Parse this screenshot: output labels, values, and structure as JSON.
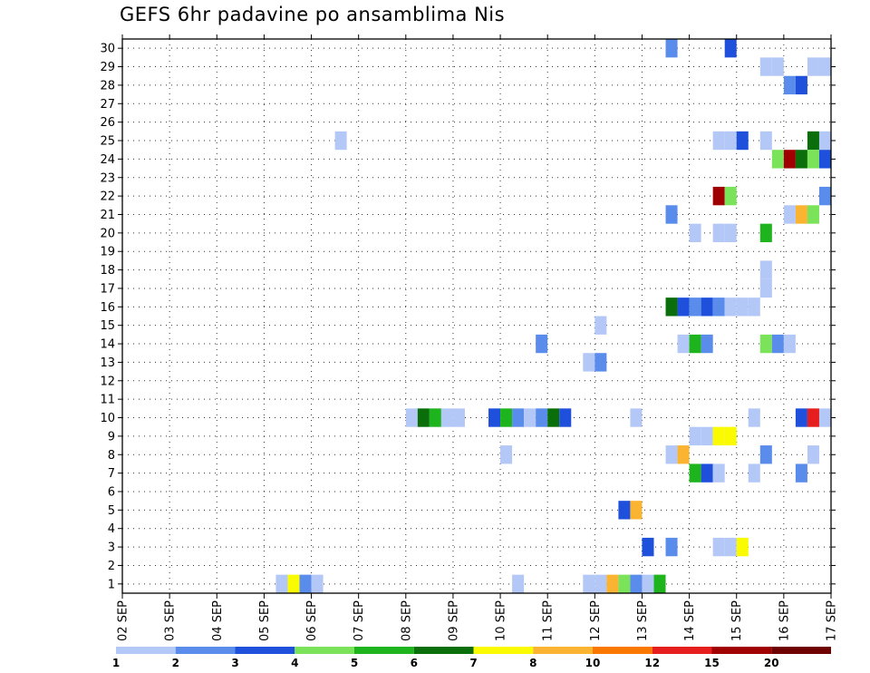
{
  "chart_data": {
    "type": "heatmap",
    "title": "GEFS 6hr padavine po ansamblima Nis",
    "xlabel": "",
    "ylabel": "",
    "x_tick_labels": [
      "02 SEP",
      "03 SEP",
      "04 SEP",
      "05 SEP",
      "06 SEP",
      "07 SEP",
      "08 SEP",
      "09 SEP",
      "10 SEP",
      "11 SEP",
      "12 SEP",
      "13 SEP",
      "14 SEP",
      "15 SEP",
      "16 SEP",
      "17 SEP"
    ],
    "x_range_days": [
      0,
      15
    ],
    "y_tick_labels": [
      "1",
      "2",
      "3",
      "4",
      "5",
      "6",
      "7",
      "8",
      "9",
      "10",
      "11",
      "12",
      "13",
      "14",
      "15",
      "16",
      "17",
      "18",
      "19",
      "20",
      "21",
      "22",
      "23",
      "24",
      "25",
      "26",
      "27",
      "28",
      "29",
      "30"
    ],
    "y_range": [
      0.5,
      30.5
    ],
    "grid": true,
    "legend_position": "bottom",
    "legend": {
      "labels": [
        "1",
        "2",
        "3",
        "4",
        "5",
        "6",
        "7",
        "8",
        "10",
        "12",
        "15",
        "20"
      ],
      "colors": [
        "#b4c8f8",
        "#5a8ceb",
        "#1e50dc",
        "#7be35a",
        "#1eb41e",
        "#0a6e0a",
        "#fafa00",
        "#fab432",
        "#fa7800",
        "#e61e1e",
        "#a00000",
        "#6e0000"
      ]
    },
    "cells": [
      {
        "m": 30,
        "t": 11.5,
        "c": 1
      },
      {
        "m": 30,
        "t": 12.75,
        "c": 2
      },
      {
        "m": 29,
        "t": 13.5,
        "c": 0
      },
      {
        "m": 29,
        "t": 13.75,
        "c": 0
      },
      {
        "m": 29,
        "t": 14.5,
        "c": 0
      },
      {
        "m": 29,
        "t": 14.75,
        "c": 0
      },
      {
        "m": 28,
        "t": 14.0,
        "c": 1
      },
      {
        "m": 28,
        "t": 14.25,
        "c": 2
      },
      {
        "m": 25,
        "t": 4.5,
        "c": 0
      },
      {
        "m": 25,
        "t": 12.5,
        "c": 0
      },
      {
        "m": 25,
        "t": 12.75,
        "c": 0
      },
      {
        "m": 25,
        "t": 13.0,
        "c": 2
      },
      {
        "m": 25,
        "t": 13.5,
        "c": 0
      },
      {
        "m": 25,
        "t": 14.5,
        "c": 5
      },
      {
        "m": 25,
        "t": 14.75,
        "c": 0
      },
      {
        "m": 24,
        "t": 13.75,
        "c": 3
      },
      {
        "m": 24,
        "t": 14.0,
        "c": 10
      },
      {
        "m": 24,
        "t": 14.25,
        "c": 5
      },
      {
        "m": 24,
        "t": 14.5,
        "c": 3
      },
      {
        "m": 24,
        "t": 14.75,
        "c": 2
      },
      {
        "m": 22,
        "t": 12.5,
        "c": 10
      },
      {
        "m": 22,
        "t": 12.75,
        "c": 3
      },
      {
        "m": 22,
        "t": 14.75,
        "c": 1
      },
      {
        "m": 21,
        "t": 11.5,
        "c": 1
      },
      {
        "m": 21,
        "t": 14.0,
        "c": 0
      },
      {
        "m": 21,
        "t": 14.25,
        "c": 7
      },
      {
        "m": 21,
        "t": 14.5,
        "c": 3
      },
      {
        "m": 20,
        "t": 12.0,
        "c": 0
      },
      {
        "m": 20,
        "t": 12.5,
        "c": 0
      },
      {
        "m": 20,
        "t": 12.75,
        "c": 0
      },
      {
        "m": 20,
        "t": 13.5,
        "c": 4
      },
      {
        "m": 18,
        "t": 13.5,
        "c": 0
      },
      {
        "m": 17,
        "t": 13.5,
        "c": 0
      },
      {
        "m": 16,
        "t": 11.5,
        "c": 5
      },
      {
        "m": 16,
        "t": 11.75,
        "c": 2
      },
      {
        "m": 16,
        "t": 12.0,
        "c": 1
      },
      {
        "m": 16,
        "t": 12.25,
        "c": 2
      },
      {
        "m": 16,
        "t": 12.5,
        "c": 1
      },
      {
        "m": 16,
        "t": 12.75,
        "c": 0
      },
      {
        "m": 16,
        "t": 13.0,
        "c": 0
      },
      {
        "m": 16,
        "t": 13.25,
        "c": 0
      },
      {
        "m": 15,
        "t": 10.0,
        "c": 0
      },
      {
        "m": 14,
        "t": 8.75,
        "c": 1
      },
      {
        "m": 14,
        "t": 11.75,
        "c": 0
      },
      {
        "m": 14,
        "t": 12.0,
        "c": 4
      },
      {
        "m": 14,
        "t": 12.25,
        "c": 1
      },
      {
        "m": 14,
        "t": 13.5,
        "c": 3
      },
      {
        "m": 14,
        "t": 13.75,
        "c": 1
      },
      {
        "m": 14,
        "t": 14.0,
        "c": 0
      },
      {
        "m": 13,
        "t": 9.75,
        "c": 0
      },
      {
        "m": 13,
        "t": 10.0,
        "c": 1
      },
      {
        "m": 10,
        "t": 6.0,
        "c": 0
      },
      {
        "m": 10,
        "t": 6.25,
        "c": 5
      },
      {
        "m": 10,
        "t": 6.5,
        "c": 4
      },
      {
        "m": 10,
        "t": 6.75,
        "c": 0
      },
      {
        "m": 10,
        "t": 7.0,
        "c": 0
      },
      {
        "m": 10,
        "t": 7.75,
        "c": 2
      },
      {
        "m": 10,
        "t": 8.0,
        "c": 4
      },
      {
        "m": 10,
        "t": 8.25,
        "c": 1
      },
      {
        "m": 10,
        "t": 8.5,
        "c": 0
      },
      {
        "m": 10,
        "t": 8.75,
        "c": 1
      },
      {
        "m": 10,
        "t": 9.0,
        "c": 5
      },
      {
        "m": 10,
        "t": 9.25,
        "c": 2
      },
      {
        "m": 10,
        "t": 10.75,
        "c": 0
      },
      {
        "m": 10,
        "t": 13.25,
        "c": 0
      },
      {
        "m": 10,
        "t": 14.25,
        "c": 2
      },
      {
        "m": 10,
        "t": 14.5,
        "c": 9
      },
      {
        "m": 10,
        "t": 14.75,
        "c": 0
      },
      {
        "m": 9,
        "t": 12.0,
        "c": 0
      },
      {
        "m": 9,
        "t": 12.25,
        "c": 0
      },
      {
        "m": 9,
        "t": 12.5,
        "c": 6
      },
      {
        "m": 9,
        "t": 12.75,
        "c": 6
      },
      {
        "m": 8,
        "t": 8.0,
        "c": 0
      },
      {
        "m": 8,
        "t": 11.5,
        "c": 0
      },
      {
        "m": 8,
        "t": 11.75,
        "c": 7
      },
      {
        "m": 8,
        "t": 13.5,
        "c": 1
      },
      {
        "m": 8,
        "t": 14.5,
        "c": 0
      },
      {
        "m": 7,
        "t": 12.0,
        "c": 4
      },
      {
        "m": 7,
        "t": 12.25,
        "c": 2
      },
      {
        "m": 7,
        "t": 12.5,
        "c": 0
      },
      {
        "m": 7,
        "t": 13.25,
        "c": 0
      },
      {
        "m": 7,
        "t": 14.25,
        "c": 1
      },
      {
        "m": 5,
        "t": 10.5,
        "c": 2
      },
      {
        "m": 5,
        "t": 10.75,
        "c": 7
      },
      {
        "m": 3,
        "t": 11.0,
        "c": 2
      },
      {
        "m": 3,
        "t": 11.5,
        "c": 1
      },
      {
        "m": 3,
        "t": 12.5,
        "c": 0
      },
      {
        "m": 3,
        "t": 12.75,
        "c": 0
      },
      {
        "m": 3,
        "t": 13.0,
        "c": 6
      },
      {
        "m": 1,
        "t": 3.25,
        "c": 0
      },
      {
        "m": 1,
        "t": 3.5,
        "c": 6
      },
      {
        "m": 1,
        "t": 3.75,
        "c": 1
      },
      {
        "m": 1,
        "t": 4.0,
        "c": 0
      },
      {
        "m": 1,
        "t": 8.25,
        "c": 0
      },
      {
        "m": 1,
        "t": 9.75,
        "c": 0
      },
      {
        "m": 1,
        "t": 10.0,
        "c": 0
      },
      {
        "m": 1,
        "t": 10.25,
        "c": 7
      },
      {
        "m": 1,
        "t": 10.5,
        "c": 3
      },
      {
        "m": 1,
        "t": 10.75,
        "c": 1
      },
      {
        "m": 1,
        "t": 11.0,
        "c": 0
      },
      {
        "m": 1,
        "t": 11.25,
        "c": 4
      }
    ]
  }
}
